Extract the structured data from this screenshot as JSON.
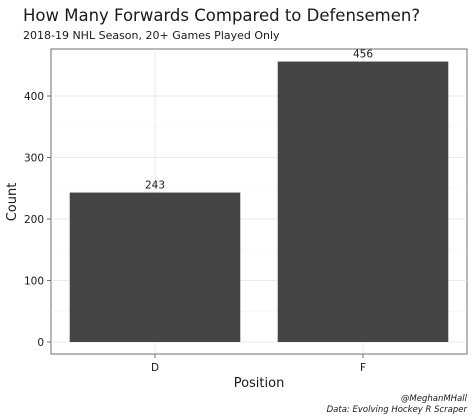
{
  "chart_data": {
    "type": "bar",
    "title": "How Many Forwards Compared to Defensemen?",
    "subtitle": "2018-19 NHL Season, 20+ Games Played Only",
    "categories": [
      "D",
      "F"
    ],
    "values": [
      243,
      456
    ],
    "data_labels": [
      "243",
      "456"
    ],
    "xlabel": "Position",
    "ylabel": "Count",
    "ylim": [
      0,
      478
    ],
    "yticks": [
      0,
      100,
      200,
      300,
      400
    ],
    "ytick_labels": [
      "0",
      "100",
      "200",
      "300",
      "400"
    ],
    "grid": true,
    "bar_color": "#454545",
    "caption": [
      "@MeghanMHall",
      "Data: Evolving Hockey R Scraper"
    ]
  }
}
